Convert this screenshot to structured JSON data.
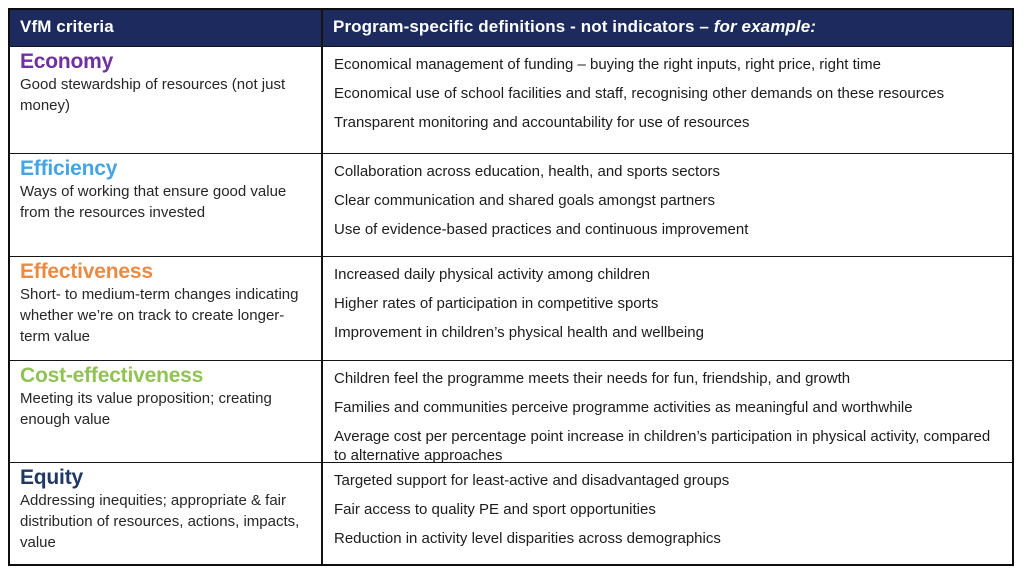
{
  "header": {
    "bg_color": "#1c2a5e",
    "text_color": "#ffffff",
    "col1_label": "VfM criteria",
    "col2_part1": "Program-specific definitions - ",
    "col2_part2": "not indicators – ",
    "col2_part3": "for example:"
  },
  "rows": [
    {
      "title": "Economy",
      "title_color": "#7030a0",
      "description": "Good stewardship of resources (not just money)",
      "examples": [
        "Economical management of funding – buying the right inputs, right price, right time",
        "Economical use of school facilities and staff, recognising other demands on these resources",
        "Transparent monitoring and accountability for use of resources"
      ]
    },
    {
      "title": "Efficiency",
      "title_color": "#45a4e5",
      "description": "Ways of working that ensure good value from the resources invested",
      "examples": [
        "Collaboration across education, health, and sports sectors",
        "Clear communication and shared goals amongst partners",
        "Use of evidence-based practices and continuous improvement"
      ]
    },
    {
      "title": "Effectiveness",
      "title_color": "#eb8b42",
      "description": "Short- to medium-term changes indicating whether we’re on track to create longer-term value",
      "examples": [
        "Increased daily physical activity among children",
        "Higher rates of participation in competitive sports",
        "Improvement in children’s physical health and wellbeing"
      ]
    },
    {
      "title": "Cost-effectiveness",
      "title_color": "#90c353",
      "description": "Meeting its value proposition; creating enough value",
      "examples": [
        "Children feel the programme meets their needs for fun, friendship, and growth",
        "Families and communities perceive programme activities as meaningful and worthwhile",
        "Average cost per percentage point increase in children’s participation in physical activity, compared to alternative approaches"
      ]
    },
    {
      "title": "Equity",
      "title_color": "#1f3864",
      "description": "Addressing inequities; appropriate & fair distribution of resources, actions, impacts, value",
      "examples": [
        "Targeted support for least-active and disadvantaged groups",
        "Fair access to quality PE and sport opportunities",
        "Reduction in activity level disparities across demographics"
      ]
    }
  ]
}
